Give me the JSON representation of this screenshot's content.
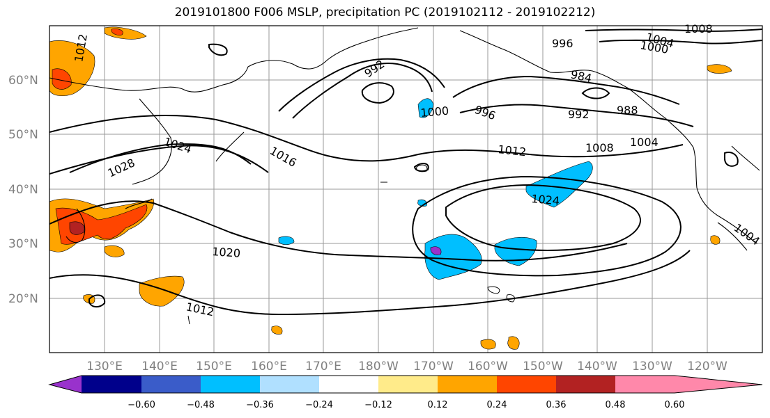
{
  "title": "2019101800 F006 MSLP, precipitation PC (2019102112 - 2019102212)",
  "map": {
    "lat_labels": [
      "60°N",
      "50°N",
      "40°N",
      "30°N",
      "20°N"
    ],
    "lon_labels": [
      "130°E",
      "140°E",
      "150°E",
      "160°E",
      "170°E",
      "180°W",
      "170°W",
      "160°W",
      "150°W",
      "140°W",
      "130°W",
      "120°W"
    ],
    "isobar_labels": [
      "1012",
      "992",
      "996",
      "1004",
      "1000",
      "1008",
      "984",
      "1000",
      "996",
      "992",
      "988",
      "1024",
      "1028",
      "1016",
      "1012",
      "1008",
      "1004",
      "1024",
      "1020",
      "1012",
      "1004"
    ]
  },
  "colorbar": {
    "colors": [
      "#9932cc",
      "#00008b",
      "#3a5cc9",
      "#00bfff",
      "#b0e0ff",
      "#ffffff",
      "#ffeb8a",
      "#ffa500",
      "#ff4500",
      "#b22222",
      "#ff88aa"
    ],
    "tick_labels": [
      "−0.60",
      "−0.48",
      "−0.36",
      "−0.24",
      "−0.12",
      "0.12",
      "0.24",
      "0.36",
      "0.48",
      "0.60"
    ]
  }
}
